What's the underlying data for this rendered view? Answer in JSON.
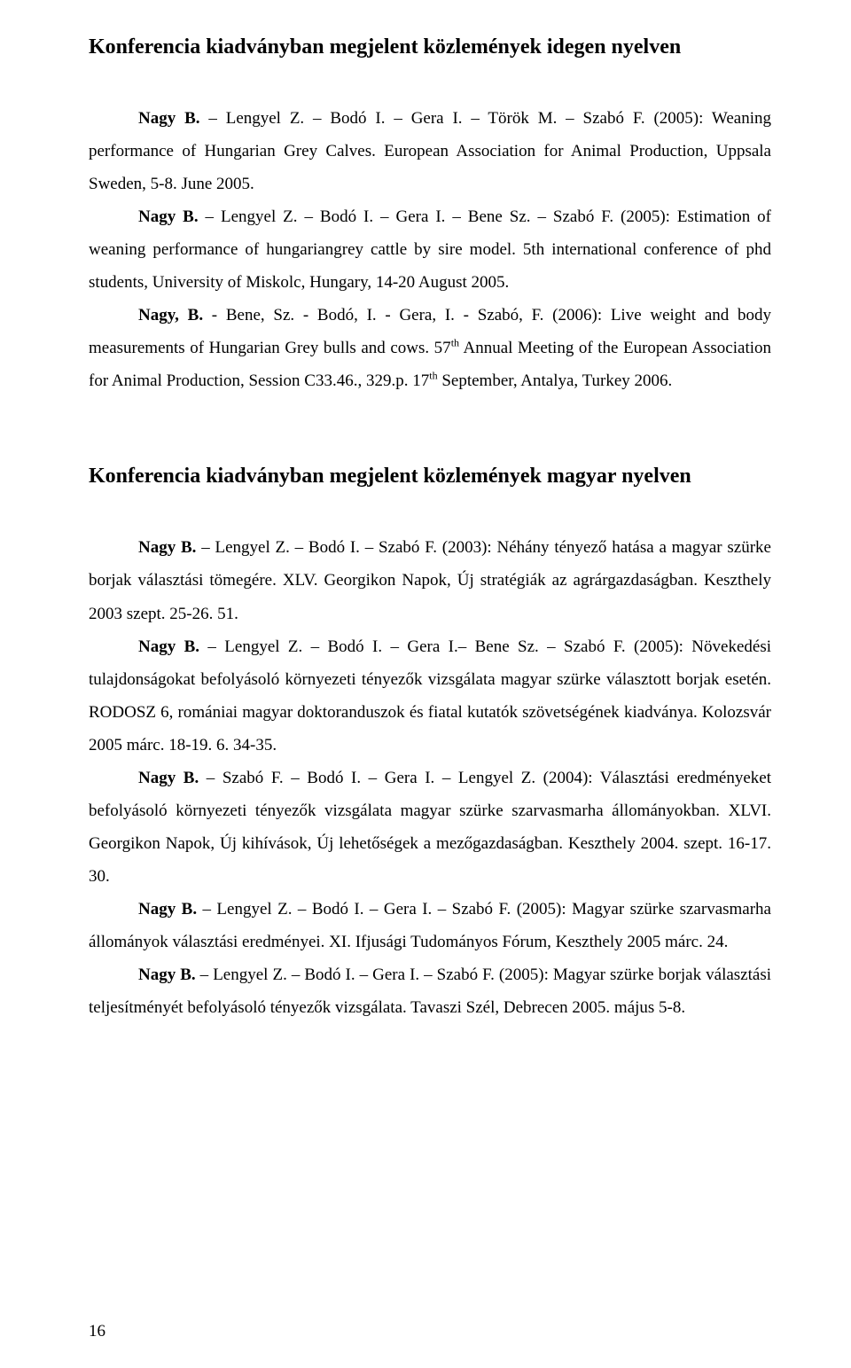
{
  "heading1": "Konferencia kiadványban megjelent közlemények idegen nyelven",
  "heading2": "Konferencia kiadványban megjelent közlemények magyar nyelven",
  "p1a": "Nagy B.",
  "p1b": " – Lengyel Z. – Bodó I. – Gera I. – Török M. – Szabó F. (2005): Weaning performance of Hungarian Grey Calves. European Association for Animal Production, Uppsala Sweden, 5-8. June 2005.",
  "p2a": "Nagy B.",
  "p2b": " – Lengyel Z. – Bodó I. – Gera I. – Bene Sz. – Szabó F. (2005): Estimation of weaning performance of hungariangrey cattle by sire model. 5th international conference of phd students, University of Miskolc, Hungary, 14-20 August 2005.",
  "p3a": "Nagy, B.",
  "p3b": " - Bene, Sz. - Bodó, I. - Gera, I. - Szabó, F. (2006): Live weight and body measurements of Hungarian Grey bulls and cows. 57",
  "p3c": "th",
  "p3d": " Annual Meeting of the European Association for Animal Production, Session C33.46., 329.p. 17",
  "p3e": "th",
  "p3f": " September, Antalya, Turkey 2006.",
  "p4a": "Nagy B.",
  "p4b": " – Lengyel Z. – Bodó I. – Szabó F. (2003): Néhány tényező hatása a magyar szürke borjak választási tömegére. XLV. Georgikon Napok, Új stratégiák az agrárgazdaságban. Keszthely 2003 szept. 25-26. 51.",
  "p5a": "Nagy B.",
  "p5b": " – Lengyel Z. – Bodó I. – Gera I.– Bene Sz. – Szabó F. (2005): Növekedési tulajdonságokat befolyásoló környezeti tényezők vizsgálata magyar szürke választott borjak esetén. RODOSZ 6, romániai magyar doktoranduszok és fiatal kutatók szövetségének kiadványa. Kolozsvár 2005 márc. 18-19. 6. 34-35.",
  "p6a": "Nagy B.",
  "p6b": " – Szabó F. – Bodó I. – Gera I. – Lengyel Z. (2004): Választási eredményeket befolyásoló környezeti tényezők vizsgálata magyar szürke szarvasmarha állományokban. XLVI. Georgikon Napok, Új kihívások, Új lehetőségek a mezőgazdaságban. Keszthely 2004. szept. 16-17. 30.",
  "p7a": "Nagy B.",
  "p7b": " – Lengyel Z. – Bodó I. – Gera I. – Szabó F. (2005): Magyar szürke szarvasmarha állományok választási eredményei. XI. Ifjusági Tudományos Fórum, Keszthely 2005 márc. 24.",
  "p8a": "Nagy B.",
  "p8b": " – Lengyel Z. – Bodó I. – Gera I. – Szabó F. (2005): Magyar szürke borjak választási teljesítményét befolyásoló tényezők vizsgálata. Tavaszi Szél, Debrecen 2005. május 5-8.",
  "page_number": "16"
}
